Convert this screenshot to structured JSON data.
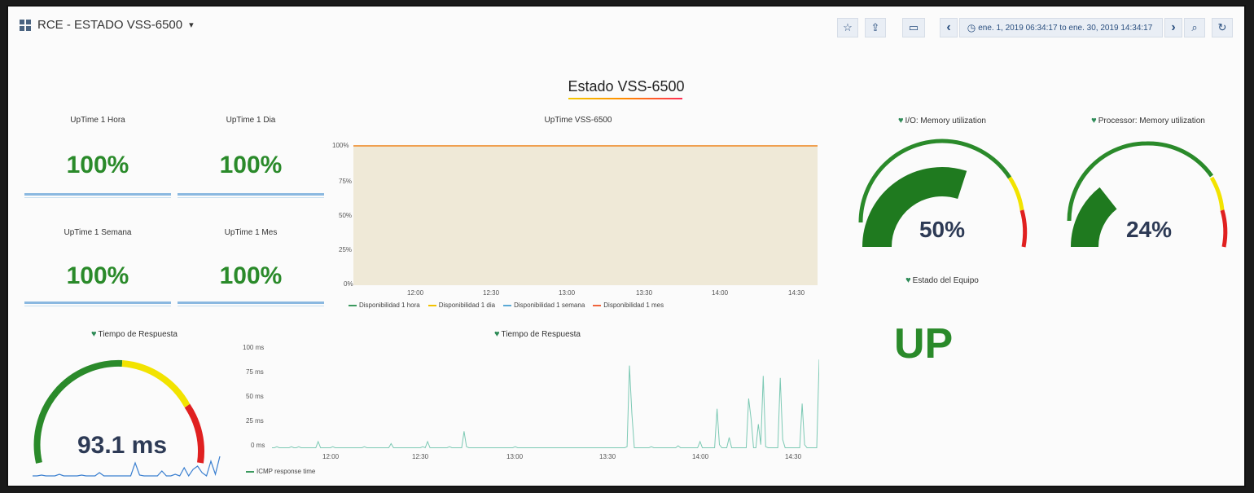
{
  "header": {
    "title": "RCE - ESTADO VSS-6500",
    "caret": "▾",
    "star_icon": "☆",
    "share_icon": "⇪",
    "tv_icon": "▭",
    "prev_icon": "‹",
    "next_icon": "›",
    "zoom_icon": "⌕",
    "refresh_icon": "↻",
    "clock_icon": "◷",
    "time_range": "ene. 1, 2019 06:34:17 to ene. 30, 2019 14:34:17"
  },
  "section": {
    "title": "Estado VSS-6500"
  },
  "stats": [
    {
      "title": "UpTime 1 Hora",
      "value": "100%"
    },
    {
      "title": "UpTime 1 Dia",
      "value": "100%"
    },
    {
      "title": "UpTime 1 Semana",
      "value": "100%"
    },
    {
      "title": "UpTime 1 Mes",
      "value": "100%"
    }
  ],
  "uptime_chart": {
    "title": "UpTime VSS-6500",
    "y_ticks": [
      "100%",
      "75%",
      "50%",
      "25%",
      "0%"
    ],
    "x_ticks": [
      "12:00",
      "12:30",
      "13:00",
      "13:30",
      "14:00",
      "14:30"
    ],
    "legend": [
      {
        "label": "Disponibilidad 1 hora",
        "color": "#3c9a5f"
      },
      {
        "label": "Disponibilidad 1 dia",
        "color": "#f2c200"
      },
      {
        "label": "Disponibilidad 1 semana",
        "color": "#5aa9d6"
      },
      {
        "label": "Disponibilidad 1 mes",
        "color": "#f0643c"
      }
    ]
  },
  "response_panel": {
    "gauge_title": "Tiempo de Respuesta",
    "gauge_value": "93.1 ms",
    "chart_title": "Tiempo de Respuesta",
    "y_ticks": [
      "100 ms",
      "75 ms",
      "50 ms",
      "25 ms",
      "0 ms"
    ],
    "x_ticks": [
      "12:00",
      "12:30",
      "13:00",
      "13:30",
      "14:00",
      "14:30"
    ],
    "legend_label": "ICMP response time"
  },
  "gauges": [
    {
      "title": "I/O: Memory utilization",
      "value": "50%",
      "fraction": 0.5
    },
    {
      "title": "Processor: Memory utilization",
      "value": "24%",
      "fraction": 0.24
    }
  ],
  "status": {
    "title": "Estado del Equipo",
    "value": "UP"
  },
  "colors": {
    "green": "#2a8a2a",
    "yellow": "#f2e300",
    "red": "#e02020",
    "accent": "#2a4f7f"
  },
  "chart_data": [
    {
      "type": "area",
      "title": "UpTime VSS-6500",
      "x": [
        "12:00",
        "12:30",
        "13:00",
        "13:30",
        "14:00",
        "14:30"
      ],
      "ylim": [
        0,
        100
      ],
      "series": [
        {
          "name": "Disponibilidad 1 hora",
          "values": [
            100,
            100,
            100,
            100,
            100,
            100
          ]
        },
        {
          "name": "Disponibilidad 1 dia",
          "values": [
            100,
            100,
            100,
            100,
            100,
            100
          ]
        },
        {
          "name": "Disponibilidad 1 semana",
          "values": [
            100,
            100,
            100,
            100,
            100,
            100
          ]
        },
        {
          "name": "Disponibilidad 1 mes",
          "values": [
            100,
            100,
            100,
            100,
            100,
            100
          ]
        }
      ]
    },
    {
      "type": "line",
      "title": "Tiempo de Respuesta",
      "ylim": [
        0,
        100
      ],
      "series": [
        {
          "name": "ICMP response time",
          "values": [
            2,
            2,
            3,
            2,
            2,
            2,
            2,
            2,
            3,
            2,
            2,
            3,
            2,
            2,
            2,
            2,
            2,
            2,
            2,
            8,
            2,
            2,
            2,
            2,
            2,
            3,
            2,
            2,
            2,
            2,
            2,
            2,
            2,
            2,
            2,
            2,
            2,
            2,
            3,
            2,
            2,
            2,
            2,
            2,
            2,
            2,
            2,
            2,
            2,
            6,
            2,
            2,
            2,
            2,
            2,
            2,
            2,
            2,
            2,
            2,
            2,
            2,
            3,
            2,
            8,
            2,
            2,
            2,
            2,
            2,
            2,
            2,
            2,
            3,
            2,
            2,
            2,
            2,
            2,
            18,
            3,
            2,
            2,
            2,
            2,
            2,
            2,
            2,
            2,
            2,
            2,
            2,
            2,
            2,
            2,
            2,
            2,
            2,
            2,
            2,
            3,
            2,
            2,
            2,
            2,
            2,
            2,
            2,
            2,
            2,
            2,
            2,
            2,
            2,
            2,
            2,
            2,
            2,
            2,
            2,
            2,
            2,
            2,
            2,
            2,
            2,
            2,
            2,
            2,
            2,
            2,
            2,
            2,
            2,
            2,
            2,
            2,
            2,
            2,
            2,
            2,
            2,
            2,
            2,
            2,
            2,
            3,
            82,
            35,
            2,
            2,
            2,
            2,
            2,
            2,
            2,
            3,
            2,
            2,
            2,
            2,
            2,
            2,
            2,
            2,
            2,
            2,
            4,
            2,
            2,
            2,
            2,
            2,
            2,
            2,
            2,
            8,
            2,
            2,
            2,
            2,
            2,
            2,
            40,
            5,
            2,
            2,
            2,
            12,
            2,
            2,
            2,
            2,
            2,
            2,
            2,
            50,
            30,
            2,
            2,
            25,
            5,
            72,
            3,
            2,
            2,
            2,
            2,
            2,
            70,
            10,
            2,
            2,
            2,
            2,
            2,
            2,
            2,
            45,
            5,
            2,
            2,
            2,
            2,
            2,
            88
          ]
        }
      ]
    },
    {
      "type": "line",
      "title": "93.1 ms",
      "series": [
        {
          "values": [
            2,
            2,
            3,
            2,
            2,
            2,
            4,
            2,
            2,
            2,
            2,
            3,
            2,
            2,
            2,
            6,
            2,
            2,
            2,
            2,
            2,
            2,
            2,
            18,
            3,
            2,
            2,
            2,
            2,
            8,
            2,
            2,
            4,
            2,
            12,
            2,
            10,
            14,
            6,
            2,
            20,
            4,
            26
          ]
        }
      ]
    }
  ]
}
